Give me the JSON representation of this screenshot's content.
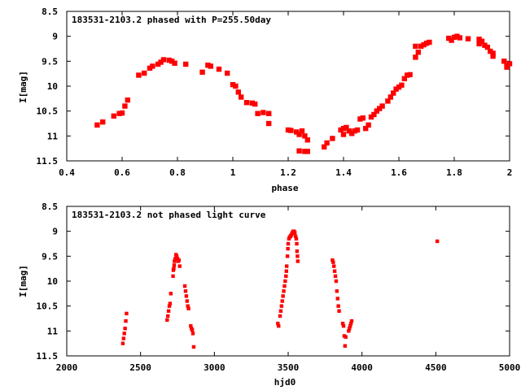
{
  "marker_color": "#ff0000",
  "chart_data": [
    {
      "type": "scatter",
      "title": "183531-2103.2 phased with P=255.50day",
      "xlabel": "phase",
      "ylabel": "I[mag]",
      "xlim": [
        0.4,
        2.0
      ],
      "ylim": [
        8.5,
        11.5
      ],
      "y_inverted": true,
      "grid": false,
      "x_ticks": [
        "0.4",
        "0.6",
        "0.8",
        "1",
        "1.2",
        "1.4",
        "1.6",
        "1.8",
        "2"
      ],
      "y_ticks": [
        "8.5",
        "9",
        "9.5",
        "10",
        "10.5",
        "11",
        "11.5"
      ],
      "series": [
        {
          "points": [
            [
              0.51,
              10.78
            ],
            [
              0.53,
              10.72
            ],
            [
              0.57,
              10.6
            ],
            [
              0.59,
              10.55
            ],
            [
              0.6,
              10.54
            ],
            [
              0.61,
              10.4
            ],
            [
              0.62,
              10.28
            ],
            [
              0.66,
              9.78
            ],
            [
              0.68,
              9.74
            ],
            [
              0.7,
              9.64
            ],
            [
              0.71,
              9.6
            ],
            [
              0.73,
              9.56
            ],
            [
              0.74,
              9.52
            ],
            [
              0.75,
              9.47
            ],
            [
              0.77,
              9.48
            ],
            [
              0.78,
              9.5
            ],
            [
              0.79,
              9.54
            ],
            [
              0.83,
              9.56
            ],
            [
              0.89,
              9.72
            ],
            [
              0.91,
              9.58
            ],
            [
              0.92,
              9.6
            ],
            [
              0.95,
              9.66
            ],
            [
              0.98,
              9.74
            ],
            [
              1.0,
              9.97
            ],
            [
              1.01,
              10.0
            ],
            [
              1.02,
              10.12
            ],
            [
              1.03,
              10.22
            ],
            [
              1.05,
              10.33
            ],
            [
              1.07,
              10.34
            ],
            [
              1.08,
              10.36
            ],
            [
              1.09,
              10.55
            ],
            [
              1.11,
              10.53
            ],
            [
              1.13,
              10.55
            ],
            [
              1.13,
              10.75
            ],
            [
              1.2,
              10.88
            ],
            [
              1.21,
              10.89
            ],
            [
              1.23,
              10.92
            ],
            [
              1.24,
              10.97
            ],
            [
              1.25,
              10.9
            ],
            [
              1.24,
              11.3
            ],
            [
              1.26,
              11.0
            ],
            [
              1.26,
              11.31
            ],
            [
              1.27,
              11.08
            ],
            [
              1.27,
              11.31
            ],
            [
              1.33,
              11.22
            ],
            [
              1.34,
              11.14
            ],
            [
              1.36,
              11.05
            ],
            [
              1.39,
              10.88
            ],
            [
              1.4,
              10.85
            ],
            [
              1.41,
              10.83
            ],
            [
              1.4,
              10.97
            ],
            [
              1.42,
              10.9
            ],
            [
              1.43,
              10.95
            ],
            [
              1.44,
              10.9
            ],
            [
              1.45,
              10.88
            ],
            [
              1.46,
              10.66
            ],
            [
              1.47,
              10.64
            ],
            [
              1.48,
              10.85
            ],
            [
              1.49,
              10.78
            ],
            [
              1.5,
              10.62
            ],
            [
              1.51,
              10.57
            ],
            [
              1.52,
              10.5
            ],
            [
              1.53,
              10.45
            ],
            [
              1.54,
              10.4
            ],
            [
              1.56,
              10.3
            ],
            [
              1.57,
              10.22
            ],
            [
              1.58,
              10.14
            ],
            [
              1.59,
              10.06
            ],
            [
              1.6,
              10.02
            ],
            [
              1.61,
              9.98
            ],
            [
              1.62,
              9.85
            ],
            [
              1.63,
              9.78
            ],
            [
              1.64,
              9.77
            ],
            [
              1.66,
              9.42
            ],
            [
              1.67,
              9.32
            ],
            [
              1.66,
              9.2
            ],
            [
              1.68,
              9.2
            ],
            [
              1.69,
              9.17
            ],
            [
              1.7,
              9.14
            ],
            [
              1.71,
              9.12
            ],
            [
              1.78,
              9.04
            ],
            [
              1.79,
              9.08
            ],
            [
              1.8,
              9.02
            ],
            [
              1.81,
              9.0
            ],
            [
              1.82,
              9.03
            ],
            [
              1.85,
              9.05
            ],
            [
              1.89,
              9.06
            ],
            [
              1.89,
              9.15
            ],
            [
              1.9,
              9.1
            ],
            [
              1.91,
              9.18
            ],
            [
              1.92,
              9.22
            ],
            [
              1.93,
              9.3
            ],
            [
              1.94,
              9.34
            ],
            [
              1.94,
              9.4
            ],
            [
              1.98,
              9.5
            ],
            [
              1.99,
              9.58
            ],
            [
              1.99,
              9.62
            ],
            [
              2.0,
              9.55
            ]
          ]
        }
      ]
    },
    {
      "type": "scatter",
      "title": "183531-2103.2 not phased light curve",
      "xlabel": "hjd0",
      "ylabel": "I[mag]",
      "xlim": [
        2000,
        5000
      ],
      "ylim": [
        8.5,
        11.5
      ],
      "y_inverted": true,
      "grid": false,
      "x_ticks": [
        "2000",
        "2500",
        "3000",
        "3500",
        "4000",
        "4500",
        "5000"
      ],
      "y_ticks": [
        "8.5",
        "9",
        "9.5",
        "10",
        "10.5",
        "11",
        "11.5"
      ],
      "series": [
        {
          "points": [
            [
              2380,
              11.25
            ],
            [
              2385,
              11.15
            ],
            [
              2390,
              11.05
            ],
            [
              2395,
              10.95
            ],
            [
              2400,
              10.8
            ],
            [
              2405,
              10.65
            ],
            [
              2680,
              10.78
            ],
            [
              2685,
              10.7
            ],
            [
              2690,
              10.6
            ],
            [
              2695,
              10.5
            ],
            [
              2700,
              10.45
            ],
            [
              2705,
              10.25
            ],
            [
              2720,
              9.9
            ],
            [
              2722,
              9.78
            ],
            [
              2725,
              9.75
            ],
            [
              2728,
              9.68
            ],
            [
              2730,
              9.6
            ],
            [
              2735,
              9.55
            ],
            [
              2740,
              9.47
            ],
            [
              2745,
              9.5
            ],
            [
              2750,
              9.55
            ],
            [
              2755,
              9.6
            ],
            [
              2760,
              9.58
            ],
            [
              2765,
              9.7
            ],
            [
              2800,
              10.1
            ],
            [
              2805,
              10.2
            ],
            [
              2810,
              10.3
            ],
            [
              2815,
              10.4
            ],
            [
              2820,
              10.5
            ],
            [
              2825,
              10.55
            ],
            [
              2840,
              10.9
            ],
            [
              2845,
              10.95
            ],
            [
              2850,
              10.98
            ],
            [
              2855,
              11.05
            ],
            [
              2860,
              11.32
            ],
            [
              3430,
              10.85
            ],
            [
              3435,
              10.9
            ],
            [
              3445,
              10.7
            ],
            [
              3450,
              10.6
            ],
            [
              3455,
              10.5
            ],
            [
              3460,
              10.4
            ],
            [
              3465,
              10.3
            ],
            [
              3470,
              10.2
            ],
            [
              3475,
              10.1
            ],
            [
              3480,
              10.0
            ],
            [
              3485,
              9.9
            ],
            [
              3488,
              9.8
            ],
            [
              3490,
              9.7
            ],
            [
              3495,
              9.5
            ],
            [
              3498,
              9.35
            ],
            [
              3500,
              9.25
            ],
            [
              3505,
              9.15
            ],
            [
              3510,
              9.12
            ],
            [
              3515,
              9.1
            ],
            [
              3520,
              9.08
            ],
            [
              3525,
              9.05
            ],
            [
              3530,
              9.02
            ],
            [
              3535,
              9.0
            ],
            [
              3540,
              9.0
            ],
            [
              3545,
              9.03
            ],
            [
              3550,
              9.1
            ],
            [
              3555,
              9.15
            ],
            [
              3558,
              9.25
            ],
            [
              3560,
              9.4
            ],
            [
              3563,
              9.5
            ],
            [
              3565,
              9.6
            ],
            [
              3800,
              9.58
            ],
            [
              3805,
              9.62
            ],
            [
              3810,
              9.7
            ],
            [
              3815,
              9.8
            ],
            [
              3820,
              9.9
            ],
            [
              3825,
              10.0
            ],
            [
              3830,
              10.2
            ],
            [
              3835,
              10.35
            ],
            [
              3840,
              10.5
            ],
            [
              3845,
              10.6
            ],
            [
              3870,
              10.85
            ],
            [
              3875,
              10.9
            ],
            [
              3880,
              11.1
            ],
            [
              3885,
              11.3
            ],
            [
              3890,
              11.12
            ],
            [
              3910,
              11.0
            ],
            [
              3915,
              10.95
            ],
            [
              3920,
              10.9
            ],
            [
              3925,
              10.85
            ],
            [
              3930,
              10.8
            ],
            [
              4510,
              9.2
            ]
          ]
        }
      ]
    }
  ]
}
